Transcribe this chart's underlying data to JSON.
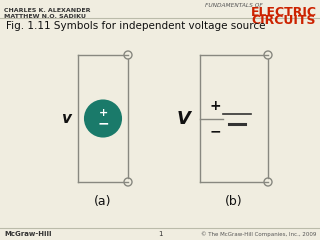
{
  "title": "Fig. 1.11 Symbols for independent voltage source",
  "header_left_line1": "CHARLES K. ALEXANDER",
  "header_left_line2": "MATTHEW N.O. SADIKU",
  "header_right_line1": "FUNDAMENTALS OF",
  "footer_left": "McGraw-Hill",
  "footer_center": "1",
  "footer_right": "© The McGraw-Hill Companies, Inc., 2009",
  "label_a": "(a)",
  "label_b": "(b)",
  "label_v": "v",
  "label_V": "V",
  "label_plus_circle": "+",
  "label_minus_circle": "−",
  "label_plus_battery": "+",
  "label_minus_battery": "−",
  "circle_color": "#1a7a6a",
  "circle_text_color": "#ffffff",
  "bg_color": "#f0ede0",
  "line_color": "#888880",
  "circle_terminal_color": "#888880"
}
